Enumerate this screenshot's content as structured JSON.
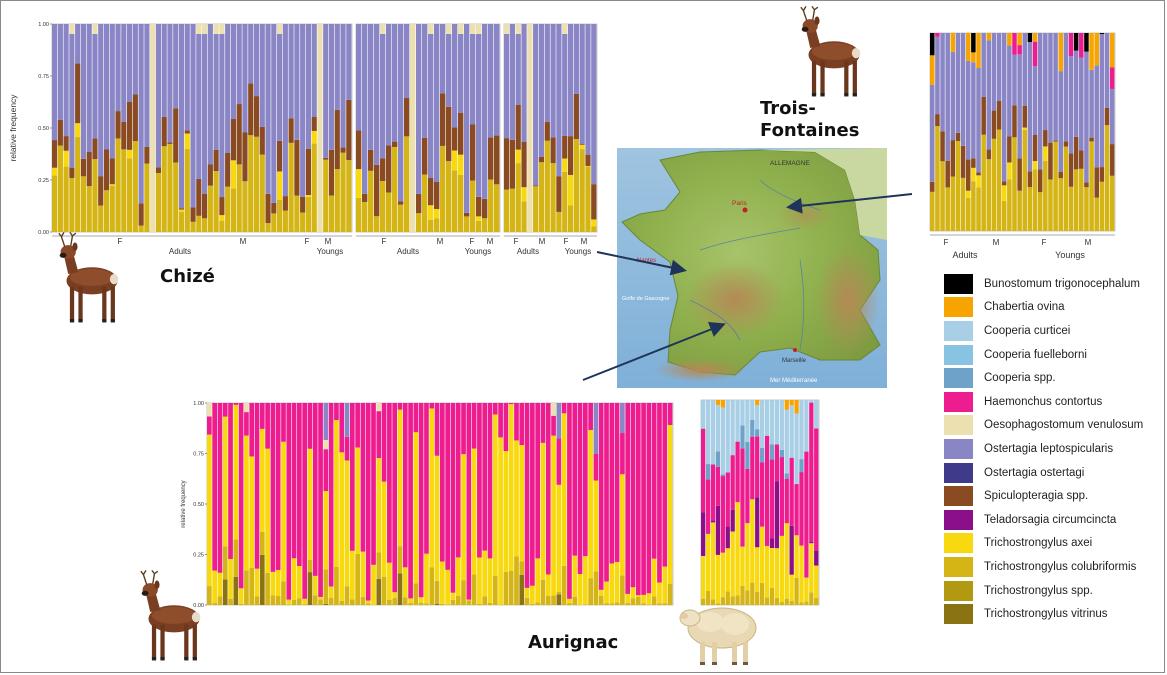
{
  "legend": [
    {
      "name": "Bunostomum trigonocephalum",
      "color": "#000000"
    },
    {
      "name": "Chabertia ovina",
      "color": "#f7a400"
    },
    {
      "name": "Cooperia curticei",
      "color": "#a9cfe6"
    },
    {
      "name": "Cooperia fuelleborni",
      "color": "#88c3e2"
    },
    {
      "name": "Cooperia spp.",
      "color": "#6ea2c8"
    },
    {
      "name": "Haemonchus contortus",
      "color": "#ee1d8f"
    },
    {
      "name": "Oesophagostomum venulosum",
      "color": "#ecdfb0"
    },
    {
      "name": "Ostertagia leptospicularis",
      "color": "#8a86c6"
    },
    {
      "name": "Ostertagia ostertagi",
      "color": "#3f3a8a"
    },
    {
      "name": "Spiculopteragia spp.",
      "color": "#8a4b22"
    },
    {
      "name": "Teladorsagia circumcincta",
      "color": "#8a0f88"
    },
    {
      "name": "Trichostrongylus axei",
      "color": "#f8d90f"
    },
    {
      "name": "Trichostrongylus colubriformis",
      "color": "#d4b515"
    },
    {
      "name": "Trichostrongylus spp.",
      "color": "#b29a10"
    },
    {
      "name": "Trichostrongylus vitrinus",
      "color": "#8a7312"
    }
  ],
  "sites": {
    "chize": "Chizé",
    "trois_fontaines": "Trois-\nFontaines",
    "aurignac": "Aurignac"
  },
  "chart_data": [
    {
      "type": "bar",
      "stacked": true,
      "panel": "Chizé (roe deer)",
      "ylabel": "relative frequency",
      "ylim": [
        0,
        1
      ],
      "yticks": [
        0,
        0.25,
        0.5,
        0.75,
        1
      ],
      "ytick_labels": [
        "0.00",
        "0.25",
        "0.50",
        "0.75",
        "1.00"
      ],
      "groups": [
        {
          "sex_labels": [
            "F",
            "M",
            "F",
            "M"
          ],
          "age_labels": [
            "Adults",
            "Youngs"
          ],
          "n_bars": 52
        },
        {
          "sex_labels": [
            "F",
            "M",
            "F",
            "M"
          ],
          "age_labels": [
            "Adults",
            "Youngs"
          ],
          "n_bars": 24
        },
        {
          "sex_labels": [
            "F",
            "M",
            "F",
            "M"
          ],
          "age_labels": [
            "Adults",
            "Youngs"
          ],
          "n_bars": 16
        }
      ],
      "series_order": [
        "Trichostrongylus axei",
        "Trichostrongylus colubriformis",
        "Spiculopteragia spp.",
        "Ostertagia leptospicularis",
        "Oesophagostomum venulosum"
      ],
      "dominant_taxa": [
        "Ostertagia leptospicularis",
        "Trichostrongylus colubriformis",
        "Spiculopteragia spp."
      ],
      "approx_upper_fraction_range": [
        0.0,
        1.0
      ]
    },
    {
      "type": "bar",
      "stacked": true,
      "panel": "Trois-Fontaines (roe deer)",
      "ylim": [
        0,
        1
      ],
      "groups": [
        {
          "sex_labels": [
            "F",
            "M",
            "F",
            "M"
          ],
          "age_labels": [
            "Adults",
            "Youngs"
          ],
          "n_bars": 36
        }
      ],
      "dominant_taxa": [
        "Trichostrongylus colubriformis",
        "Spiculopteragia spp.",
        "Ostertagia leptospicularis",
        "Chabertia ovina",
        "Bunostomum trigonocephalum",
        "Haemonchus contortus"
      ]
    },
    {
      "type": "bar",
      "stacked": true,
      "panel": "Aurignac (roe deer)",
      "ylabel": "relative frequency",
      "ylim": [
        0,
        1
      ],
      "yticks": [
        0,
        0.25,
        0.5,
        0.75,
        1
      ],
      "ytick_labels": [
        "0.00",
        "0.25",
        "0.50",
        "0.75",
        "1.00"
      ],
      "n_bars": 88,
      "dominant_taxa": [
        "Haemonchus contortus",
        "Trichostrongylus axei",
        "Trichostrongylus colubriformis",
        "Trichostrongylus vitrinus"
      ]
    },
    {
      "type": "bar",
      "stacked": true,
      "panel": "Aurignac (sheep)",
      "ylim": [
        0,
        1
      ],
      "n_bars": 24,
      "dominant_taxa": [
        "Haemonchus contortus",
        "Trichostrongylus axei",
        "Teladorsagia circumcincta",
        "Cooperia curticei"
      ]
    }
  ],
  "map": {
    "labels": [
      "ALLEMAGNE",
      "Paris",
      "Nantes",
      "Marseille",
      "Mer Méditerranée",
      "Golfe de Gascogne"
    ]
  }
}
